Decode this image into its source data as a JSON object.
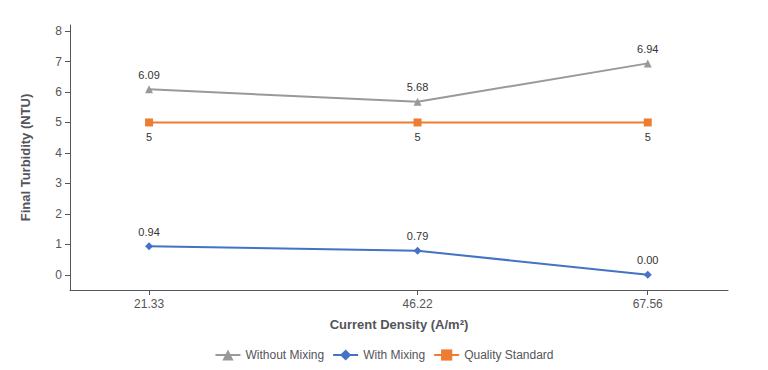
{
  "chart_data": {
    "type": "line",
    "xlabel": "Current Density (A/m²)",
    "ylabel": "Final Turbidity (NTU)",
    "x": [
      21.33,
      46.22,
      67.56
    ],
    "series": [
      {
        "name": "Without Mixing",
        "color": "#999999",
        "marker": "triangle",
        "line_style": "solid",
        "values": [
          6.09,
          5.68,
          6.94
        ],
        "value_labels": [
          "6.09",
          "5.68",
          "6.94"
        ]
      },
      {
        "name": "With Mixing",
        "color": "#4472C4",
        "marker": "diamond",
        "line_style": "solid",
        "values": [
          0.94,
          0.79,
          0.0
        ],
        "value_labels": [
          "0.94",
          "0.79",
          "0.00"
        ]
      },
      {
        "name": "Quality Standard",
        "color": "#ED7D31",
        "marker": "square",
        "line_style": "solid",
        "values": [
          5,
          5,
          5
        ],
        "value_labels": [
          "5",
          "5",
          "5"
        ]
      }
    ],
    "xlim": [
      14,
      75
    ],
    "xticks": [
      21.33,
      46.22,
      67.56
    ],
    "ylim": [
      -0.5,
      8.2
    ],
    "yticks": [
      0,
      1,
      2,
      3,
      4,
      5,
      6,
      7,
      8
    ],
    "grid": false,
    "legend": "bottom",
    "data_labels": true
  }
}
